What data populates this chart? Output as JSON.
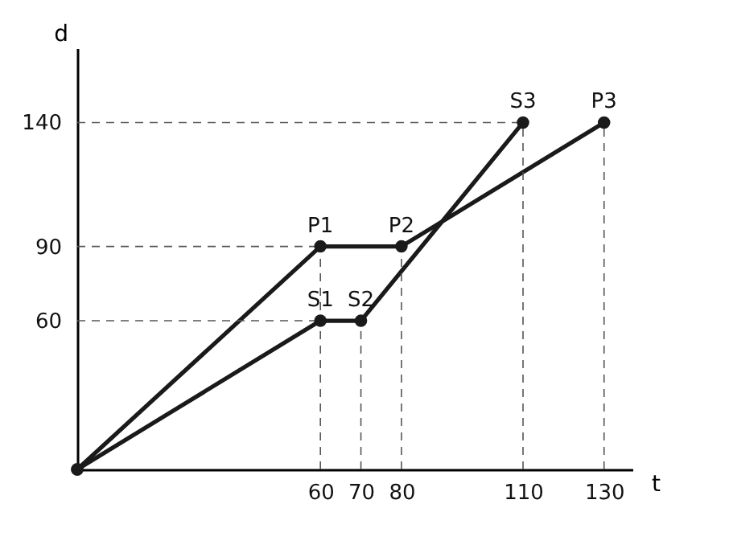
{
  "chart_data": {
    "type": "line",
    "xlabel": "t",
    "ylabel": "d",
    "xlim": [
      0,
      137
    ],
    "ylim": [
      0,
      170
    ],
    "xticks": [
      60,
      70,
      80,
      110,
      130
    ],
    "yticks": [
      60,
      90,
      140
    ],
    "grid": false,
    "legend": false,
    "marker": "circle",
    "line_style": "solid",
    "series": [
      {
        "color": "#1a1a1a",
        "x": [
          0,
          60,
          80,
          130
        ],
        "values": [
          0,
          90,
          90,
          140
        ]
      },
      {
        "color": "#1a1a1a",
        "x": [
          0,
          60,
          70,
          110
        ],
        "values": [
          0,
          60,
          60,
          140
        ]
      }
    ],
    "ref_lines": [
      {
        "axis": "x",
        "value": 60,
        "color": "#555555",
        "line_style": "dashed"
      },
      {
        "axis": "x",
        "value": 70,
        "color": "#555555",
        "line_style": "dashed"
      },
      {
        "axis": "x",
        "value": 80,
        "color": "#555555",
        "line_style": "dashed"
      },
      {
        "axis": "x",
        "value": 110,
        "color": "#555555",
        "line_style": "dashed"
      },
      {
        "axis": "x",
        "value": 130,
        "color": "#555555",
        "line_style": "dashed"
      },
      {
        "axis": "y",
        "value": 60,
        "color": "#555555",
        "line_style": "dashed"
      },
      {
        "axis": "y",
        "value": 90,
        "color": "#555555",
        "line_style": "dashed"
      },
      {
        "axis": "y",
        "value": 140,
        "color": "#555555",
        "line_style": "dashed"
      }
    ],
    "annotations": [
      {
        "text": "P1",
        "x": 60,
        "y": 90
      },
      {
        "text": "P2",
        "x": 80,
        "y": 90
      },
      {
        "text": "P3",
        "x": 130,
        "y": 140
      },
      {
        "text": "S1",
        "x": 60,
        "y": 60
      },
      {
        "text": "S2",
        "x": 70,
        "y": 60
      },
      {
        "text": "S3",
        "x": 110,
        "y": 140
      }
    ]
  }
}
